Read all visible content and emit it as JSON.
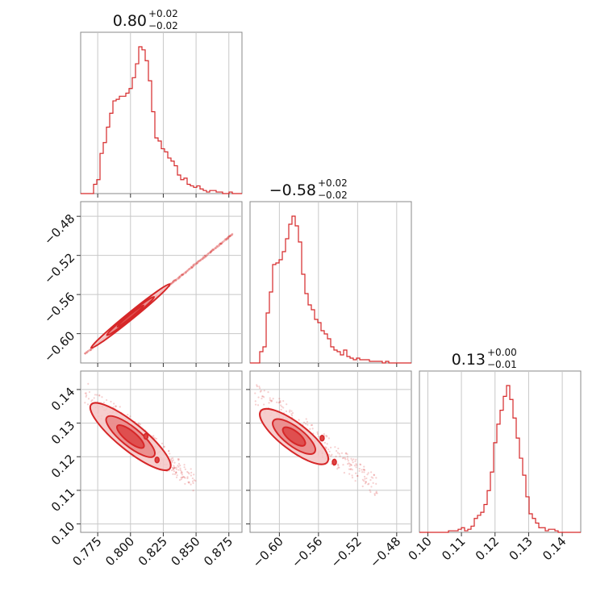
{
  "chart_data": {
    "type": "corner",
    "color": "#d62728",
    "grid": true,
    "parameters": [
      {
        "range": [
          0.762,
          0.885
        ],
        "ticks": [
          0.775,
          0.8,
          0.825,
          0.85,
          0.875
        ],
        "tick_labels": [
          "0.775",
          "0.800",
          "0.825",
          "0.850",
          "0.875"
        ],
        "title": {
          "value": "0.80",
          "plus": "+0.02",
          "minus": "−0.02"
        }
      },
      {
        "range": [
          -0.63,
          -0.465
        ],
        "ticks": [
          -0.6,
          -0.56,
          -0.52,
          -0.48
        ],
        "tick_labels": [
          "−0.60",
          "−0.56",
          "−0.52",
          "−0.48"
        ],
        "title": {
          "value": "−0.58",
          "plus": "+0.02",
          "minus": "−0.02"
        }
      },
      {
        "range": [
          0.0975,
          0.1455
        ],
        "ticks": [
          0.1,
          0.11,
          0.12,
          0.13,
          0.14
        ],
        "tick_labels": [
          "0.10",
          "0.11",
          "0.12",
          "0.13",
          "0.14"
        ],
        "title": {
          "value": "0.13",
          "plus": "+0.00",
          "minus": "−0.01"
        }
      }
    ],
    "histograms": [
      {
        "parameter": 0,
        "edges_start": 0.762,
        "bin_width": 0.00246,
        "counts": [
          0.0,
          0.0,
          0.0,
          0.0,
          0.06,
          0.09,
          0.26,
          0.33,
          0.43,
          0.52,
          0.6,
          0.61,
          0.63,
          0.63,
          0.65,
          0.68,
          0.75,
          0.84,
          0.95,
          0.93,
          0.86,
          0.73,
          0.53,
          0.36,
          0.34,
          0.29,
          0.27,
          0.23,
          0.21,
          0.18,
          0.12,
          0.09,
          0.1,
          0.06,
          0.05,
          0.04,
          0.05,
          0.03,
          0.02,
          0.01,
          0.02,
          0.02,
          0.01,
          0.01,
          0.0,
          0.0,
          0.01,
          0.0,
          0.0,
          0.0
        ]
      },
      {
        "parameter": 1,
        "edges_start": -0.63,
        "bin_width": 0.0033,
        "counts": [
          0.0,
          0.0,
          0.0,
          0.07,
          0.1,
          0.31,
          0.44,
          0.61,
          0.62,
          0.64,
          0.69,
          0.77,
          0.86,
          0.91,
          0.85,
          0.75,
          0.55,
          0.43,
          0.36,
          0.33,
          0.27,
          0.25,
          0.2,
          0.18,
          0.15,
          0.1,
          0.08,
          0.07,
          0.05,
          0.08,
          0.04,
          0.03,
          0.02,
          0.03,
          0.02,
          0.02,
          0.02,
          0.01,
          0.01,
          0.01,
          0.01,
          0.0,
          0.01,
          0.0,
          0.0,
          0.0,
          0.0,
          0.0,
          0.0,
          0.0
        ]
      },
      {
        "parameter": 2,
        "edges_start": 0.0975,
        "bin_width": 0.00096,
        "counts": [
          0.0,
          0.0,
          0.0,
          0.0,
          0.0,
          0.0,
          0.0,
          0.0,
          0.0,
          0.01,
          0.01,
          0.01,
          0.02,
          0.03,
          0.01,
          0.02,
          0.04,
          0.09,
          0.11,
          0.13,
          0.18,
          0.27,
          0.39,
          0.58,
          0.7,
          0.79,
          0.88,
          0.95,
          0.86,
          0.74,
          0.61,
          0.48,
          0.37,
          0.23,
          0.12,
          0.09,
          0.06,
          0.03,
          0.03,
          0.01,
          0.02,
          0.02,
          0.01,
          0.0,
          0.0,
          0.0,
          0.0,
          0.0,
          0.0,
          0.0
        ]
      }
    ],
    "pairs": [
      {
        "x_param": 0,
        "y_param": 1,
        "ridge_x": [
          0.765,
          0.85,
          0.878
        ],
        "ridge_y": [
          -0.621,
          -0.528,
          -0.498
        ],
        "levels": [
          {
            "half_length": 0.03,
            "half_width": 0.0035,
            "fill": "#f5c6c6"
          },
          {
            "half_length": 0.018,
            "half_width": 0.0025,
            "fill": "#e98585"
          },
          {
            "half_length": 0.01,
            "half_width": 0.0015,
            "fill": "#dd4444"
          }
        ],
        "center": [
          0.8,
          -0.582
        ]
      },
      {
        "x_param": 0,
        "y_param": 2,
        "ridge_x": [
          0.765,
          0.85
        ],
        "ridge_y": [
          0.139,
          0.112
        ],
        "levels": [
          {
            "half_length": 0.03,
            "half_width": 0.004,
            "fill": "#f5c6c6"
          },
          {
            "half_length": 0.018,
            "half_width": 0.0028,
            "fill": "#e98585"
          },
          {
            "half_length": 0.01,
            "half_width": 0.0016,
            "fill": "#dd4444"
          }
        ],
        "center": [
          0.8,
          0.126
        ]
      },
      {
        "x_param": 1,
        "y_param": 2,
        "ridge_x": [
          -0.625,
          -0.5
        ],
        "ridge_y": [
          0.139,
          0.111
        ],
        "levels": [
          {
            "half_length": 0.034,
            "half_width": 0.004,
            "fill": "#f5c6c6"
          },
          {
            "half_length": 0.021,
            "half_width": 0.0028,
            "fill": "#e98585"
          },
          {
            "half_length": 0.011,
            "half_width": 0.0016,
            "fill": "#dd4444"
          }
        ],
        "center": [
          -0.585,
          0.126
        ]
      }
    ]
  }
}
